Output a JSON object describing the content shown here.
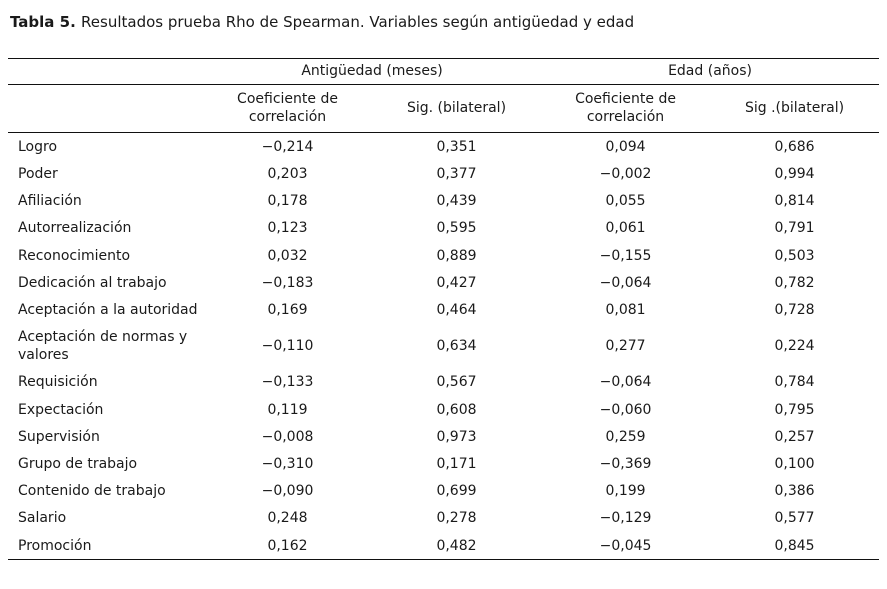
{
  "title": {
    "prefix": "Tabla 5.",
    "text": "Resultados prueba Rho de Spearman. Variables según antigüedad y edad"
  },
  "table": {
    "groups": [
      "Antigüedad (meses)",
      "Edad (años)"
    ],
    "columns": [
      "Coeficiente de correlación",
      "Sig. (bilateral)",
      "Coeficiente de correlación",
      "Sig .(bilateral)"
    ],
    "rows": [
      {
        "label": "Logro",
        "values": [
          "−0,214",
          "0,351",
          "0,094",
          "0,686"
        ]
      },
      {
        "label": "Poder",
        "values": [
          "0,203",
          "0,377",
          "−0,002",
          "0,994"
        ]
      },
      {
        "label": "Afiliación",
        "values": [
          "0,178",
          "0,439",
          "0,055",
          "0,814"
        ]
      },
      {
        "label": "Autorrealización",
        "values": [
          "0,123",
          "0,595",
          "0,061",
          "0,791"
        ]
      },
      {
        "label": "Reconocimiento",
        "values": [
          "0,032",
          "0,889",
          "−0,155",
          "0,503"
        ]
      },
      {
        "label": "Dedicación al trabajo",
        "values": [
          "−0,183",
          "0,427",
          "−0,064",
          "0,782"
        ]
      },
      {
        "label": "Aceptación a la autoridad",
        "values": [
          "0,169",
          "0,464",
          "0,081",
          "0,728"
        ]
      },
      {
        "label": "Aceptación de normas y valores",
        "values": [
          "−0,110",
          "0,634",
          "0,277",
          "0,224"
        ]
      },
      {
        "label": "Requisición",
        "values": [
          "−0,133",
          "0,567",
          "−0,064",
          "0,784"
        ]
      },
      {
        "label": "Expectación",
        "values": [
          "0,119",
          "0,608",
          "−0,060",
          "0,795"
        ]
      },
      {
        "label": "Supervisión",
        "values": [
          "−0,008",
          "0,973",
          "0,259",
          "0,257"
        ]
      },
      {
        "label": "Grupo de trabajo",
        "values": [
          "−0,310",
          "0,171",
          "−0,369",
          "0,100"
        ]
      },
      {
        "label": "Contenido de trabajo",
        "values": [
          "−0,090",
          "0,699",
          "0,199",
          "0,386"
        ]
      },
      {
        "label": "Salario",
        "values": [
          "0,248",
          "0,278",
          "−0,129",
          "0,577"
        ]
      },
      {
        "label": "Promoción",
        "values": [
          "0,162",
          "0,482",
          "−0,045",
          "0,845"
        ]
      }
    ]
  }
}
